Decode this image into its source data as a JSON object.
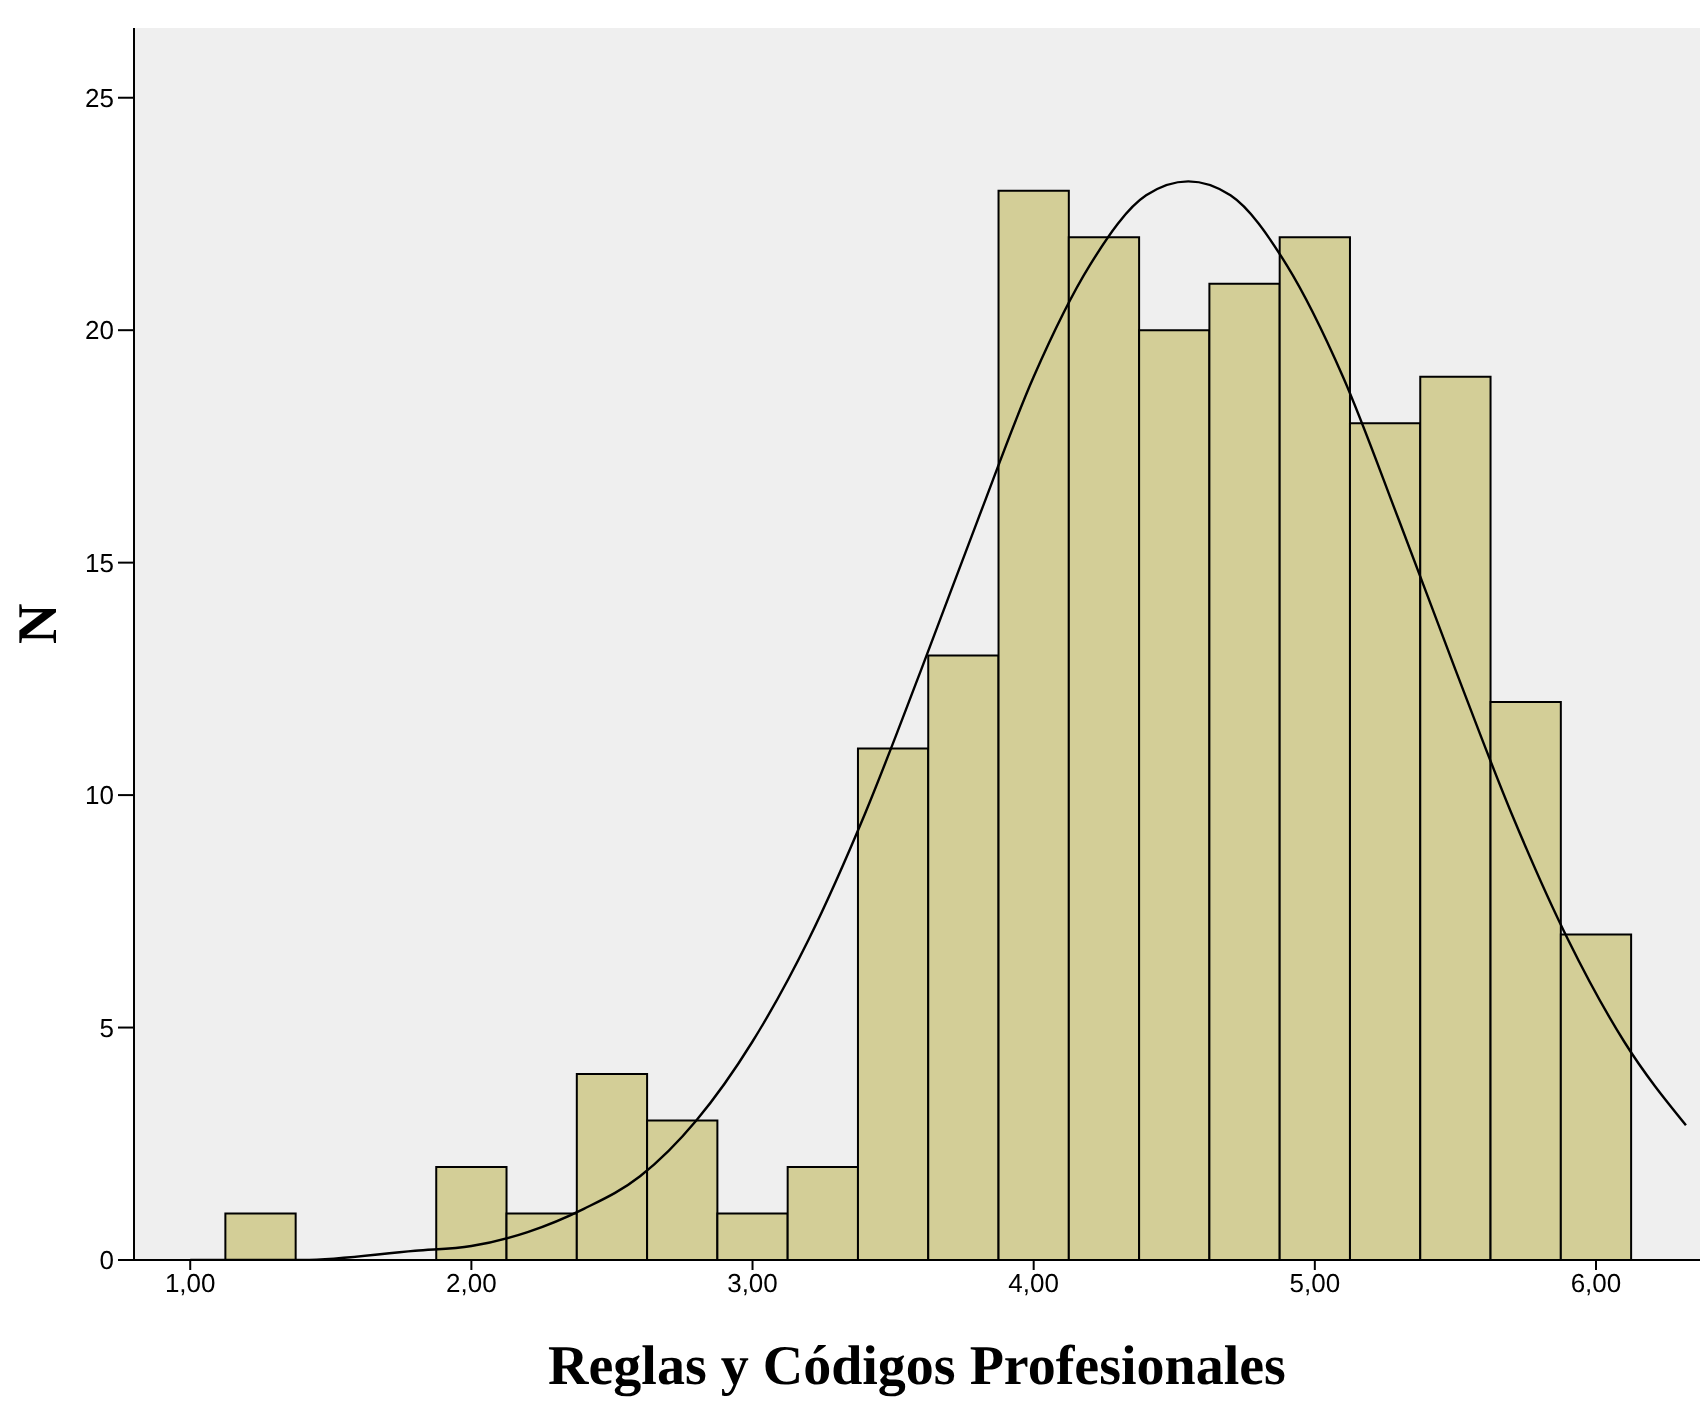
{
  "chart_data": {
    "type": "histogram",
    "xlabel": "Reglas y Códigos Profesionales",
    "ylabel": "N",
    "bins": [
      1.125,
      1.375,
      1.625,
      1.875,
      2.125,
      2.375,
      2.625,
      2.875,
      3.125,
      3.375,
      3.625,
      3.875,
      4.125,
      4.375,
      4.625,
      4.875,
      5.125,
      5.375,
      5.625,
      5.875,
      6.125
    ],
    "series": [
      {
        "color": "#d3ce97",
        "values": [
          1,
          0,
          0,
          2,
          1,
          4,
          3,
          1,
          2,
          11,
          13,
          23,
          22,
          20,
          21,
          22,
          18,
          19,
          12,
          7
        ]
      },
      {
        "type": "line",
        "color": "#000000",
        "x": [
          1.0,
          1.4,
          1.8,
          2.0,
          2.2,
          2.4,
          2.6,
          2.8,
          3.0,
          3.2,
          3.4,
          3.6,
          3.8,
          4.0,
          4.2,
          4.4,
          4.55,
          4.7,
          4.9,
          5.1,
          5.3,
          5.5,
          5.7,
          5.9,
          6.1,
          6.32
        ],
        "values": [
          0.0,
          0.0,
          0.2,
          0.3,
          0.6,
          1.1,
          1.8,
          3.0,
          4.7,
          6.9,
          9.6,
          12.7,
          15.9,
          19.0,
          21.4,
          22.9,
          23.2,
          22.9,
          21.4,
          19.0,
          15.9,
          12.7,
          9.6,
          6.9,
          4.7,
          2.9
        ]
      }
    ],
    "xlim": [
      0.8,
      6.37
    ],
    "ylim": [
      0,
      26.5
    ],
    "xticks": [
      {
        "value": 1,
        "label": "1,00"
      },
      {
        "value": 2,
        "label": "2,00"
      },
      {
        "value": 3,
        "label": "3,00"
      },
      {
        "value": 4,
        "label": "4,00"
      },
      {
        "value": 5,
        "label": "5,00"
      },
      {
        "value": 6,
        "label": "6,00"
      }
    ],
    "yticks": [
      0,
      5,
      10,
      15,
      20,
      25
    ],
    "grid": false,
    "marker": "none"
  }
}
